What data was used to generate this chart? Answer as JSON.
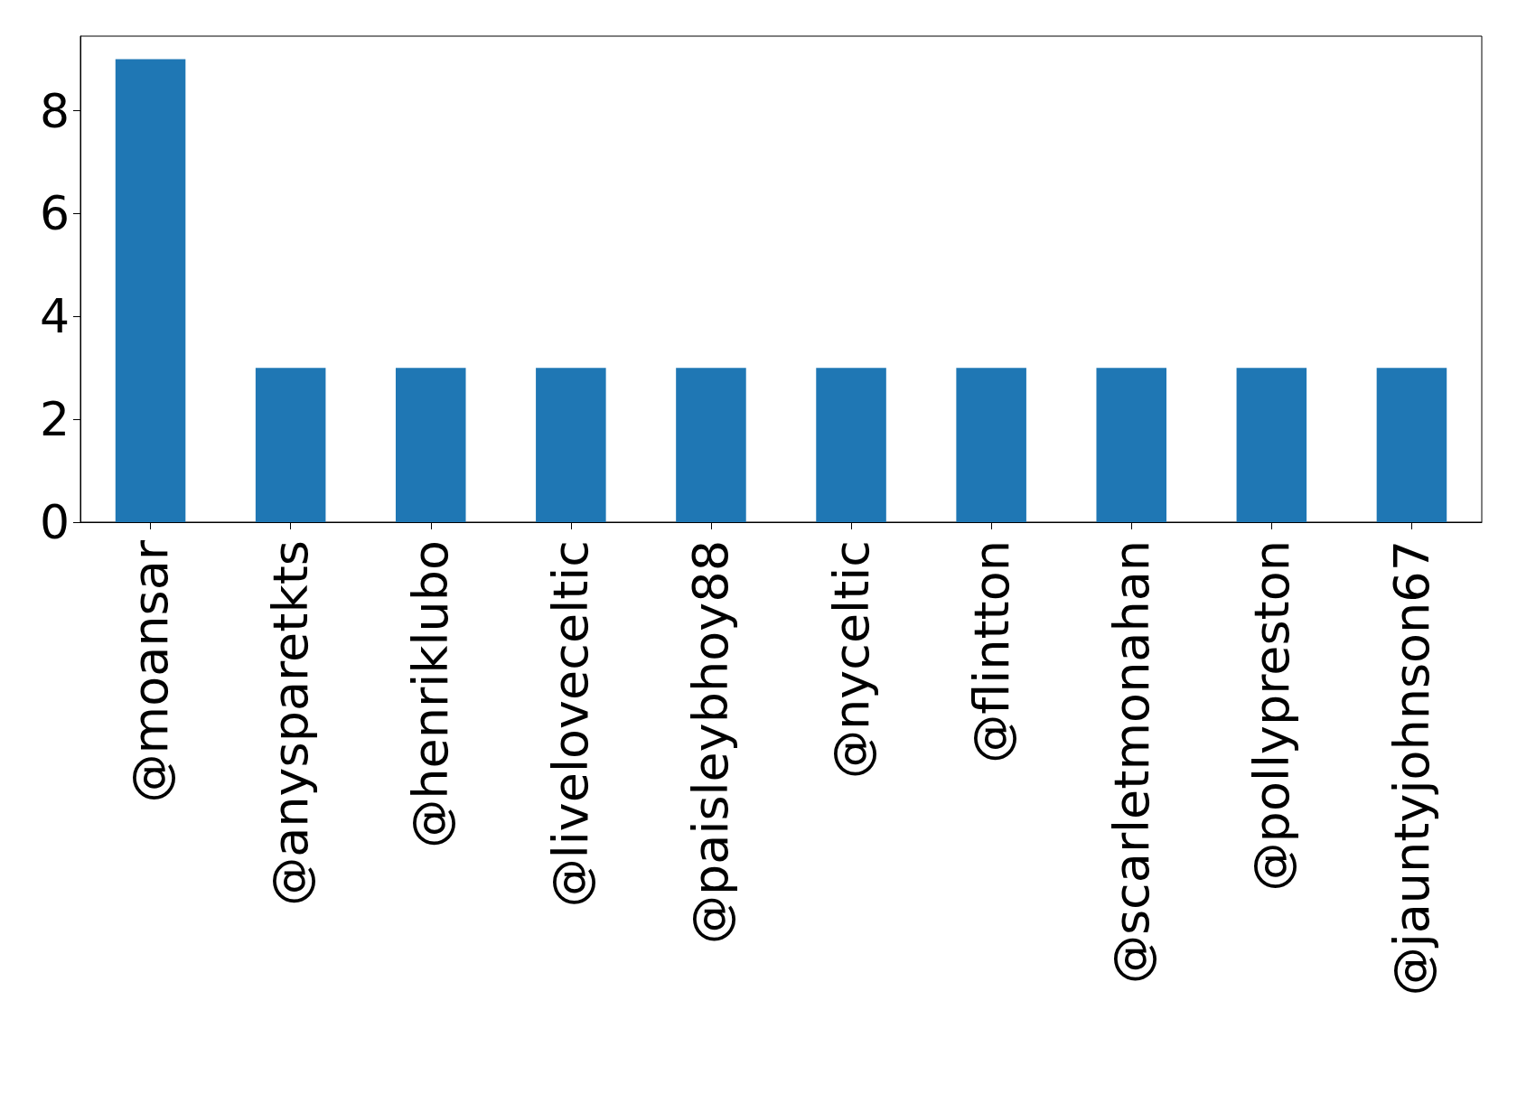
{
  "chart_data": {
    "type": "bar",
    "categories": [
      "@moansar",
      "@anysparetkts",
      "@henriklubo",
      "@liveloveceltic",
      "@paisleybhoy88",
      "@nyceltic",
      "@flintton",
      "@scarletmonahan",
      "@pollypreston",
      "@jauntyjohnson67"
    ],
    "values": [
      9,
      3,
      3,
      3,
      3,
      3,
      3,
      3,
      3,
      3
    ],
    "color": "#1f77b4",
    "ylim": [
      0,
      9.45
    ],
    "yticks": [
      0,
      2,
      4,
      6,
      8
    ],
    "grid": false
  }
}
